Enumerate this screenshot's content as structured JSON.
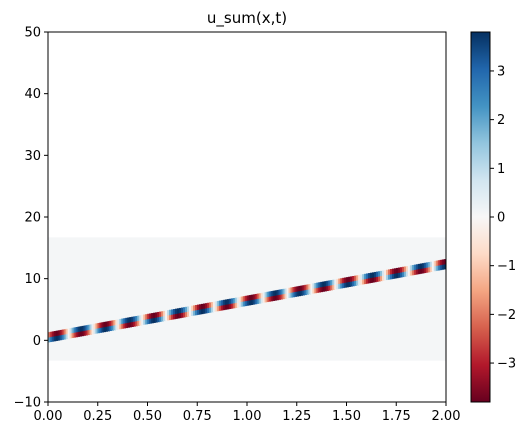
{
  "chart_data": {
    "type": "heatmap",
    "title": "u_sum(x,t)",
    "xlabel": "",
    "ylabel": "",
    "xlim": [
      0.0,
      2.0
    ],
    "ylim": [
      -10,
      50
    ],
    "xticks": [
      "0.00",
      "0.25",
      "0.50",
      "0.75",
      "1.00",
      "1.25",
      "1.50",
      "1.75",
      "2.00"
    ],
    "yticks": [
      "−10",
      "0",
      "10",
      "20",
      "30",
      "40",
      "50"
    ],
    "grid": false,
    "colormap": "RdBu",
    "colorbar": {
      "range": [
        -3.8,
        3.8
      ],
      "ticks": [
        "−3",
        "−2",
        "−1",
        "0",
        "1",
        "2",
        "3"
      ],
      "tick_values": [
        -3,
        -2,
        -1,
        0,
        1,
        2,
        3
      ]
    },
    "data_extent": {
      "t": [
        -3.3,
        16.7
      ],
      "x": [
        0.0,
        2.0
      ]
    },
    "wave_track": {
      "x": [
        0.0,
        2.0
      ],
      "t_center": [
        0.5,
        12.4
      ],
      "max_amplitude": 3.8
    }
  },
  "colors": {
    "background_field": "#f4f6f7",
    "axes_frame": "#000000",
    "rdbu_stops": [
      "#67001f",
      "#b2182b",
      "#d6604d",
      "#f4a582",
      "#fddbc7",
      "#f7f7f7",
      "#d1e5f0",
      "#92c5de",
      "#4393c3",
      "#2166ac",
      "#053061"
    ]
  }
}
